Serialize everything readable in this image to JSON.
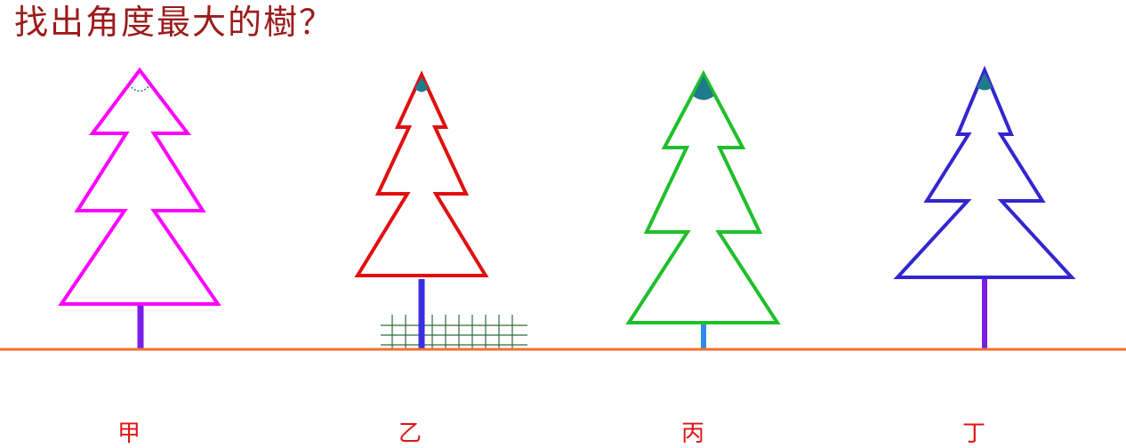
{
  "question": "找出角度最大的樹？",
  "colors": {
    "title": "#9b1b1b",
    "ground": "#f07030",
    "label": "#e01515",
    "fence": "#2d6a3a",
    "angle_mark": "#1f7a8c"
  },
  "trees": [
    {
      "id": "jia",
      "label": "甲",
      "outline_color": "#ff00ff",
      "trunk_color": "#7a1ee8"
    },
    {
      "id": "yi",
      "label": "乙",
      "outline_color": "#e01010",
      "trunk_color": "#3a2ee0"
    },
    {
      "id": "bing",
      "label": "丙",
      "outline_color": "#1fbf2a",
      "trunk_color": "#2a8ee8"
    },
    {
      "id": "ding",
      "label": "丁",
      "outline_color": "#3326d0",
      "trunk_color": "#7a1ee8"
    }
  ]
}
